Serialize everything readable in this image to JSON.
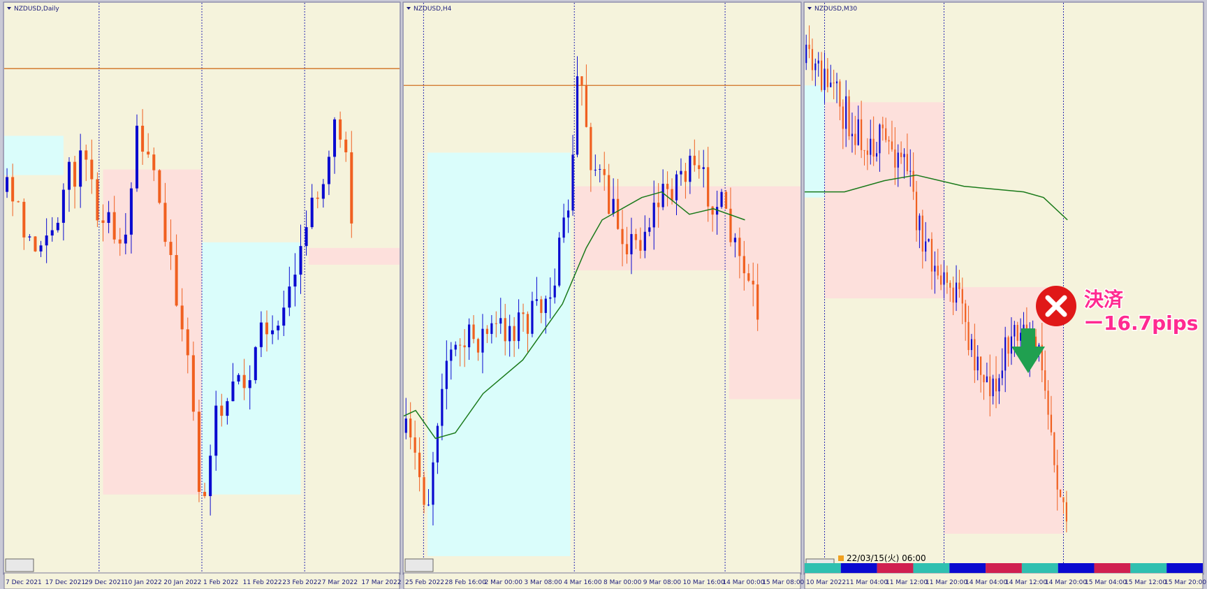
{
  "panels": [
    {
      "title": "NZDUSD,Daily",
      "dates": [
        "7 Dec 2021",
        "17 Dec 2021",
        "29 Dec 2021",
        "10 Jan 2022",
        "20 Jan 2022",
        "1 Feb 2022",
        "11 Feb 2022",
        "23 Feb 2022",
        "7 Mar 2022",
        "17 Mar 2022"
      ]
    },
    {
      "title": "NZDUSD,H4",
      "dates": [
        "25 Feb 2022",
        "28 Feb 16:00",
        "2 Mar 00:00",
        "3 Mar 08:00",
        "4 Mar 16:00",
        "8 Mar 00:00",
        "9 Mar 08:00",
        "10 Mar 16:00",
        "14 Mar 00:00",
        "15 Mar 08:00"
      ]
    },
    {
      "title": "NZDUSD,M30",
      "dates": [
        "10 Mar 2022",
        "11 Mar 04:00",
        "11 Mar 12:00",
        "11 Mar 20:00",
        "14 Mar 04:00",
        "14 Mar 12:00",
        "14 Mar 20:00",
        "15 Mar 04:00",
        "15 Mar 12:00",
        "15 Mar 20:00"
      ]
    }
  ],
  "annotation": {
    "status": "決済",
    "result": "ー16.7pips"
  },
  "status_bar": {
    "timestamp": "22/03/15(火) 06:00"
  }
}
